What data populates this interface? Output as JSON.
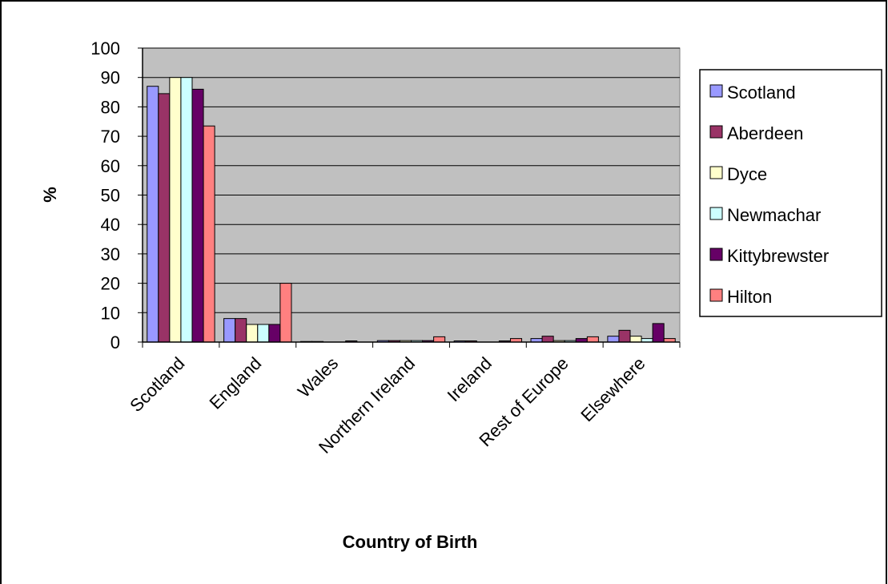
{
  "chart_data": {
    "type": "bar",
    "title": "",
    "xlabel": "Country of Birth",
    "ylabel": "%",
    "ylim": [
      0,
      100
    ],
    "yticks": [
      0,
      10,
      20,
      30,
      40,
      50,
      60,
      70,
      80,
      90,
      100
    ],
    "categories": [
      "Scotland",
      "England",
      "Wales",
      "Northern Ireland",
      "Ireland",
      "Rest of Europe",
      "Elsewhere"
    ],
    "series": [
      {
        "name": "Scotland",
        "color": "#9999FF",
        "values": [
          87,
          8,
          0.2,
          0.5,
          0.4,
          1.2,
          2.0
        ]
      },
      {
        "name": "Aberdeen",
        "color": "#993366",
        "values": [
          84.5,
          8,
          0.2,
          0.5,
          0.4,
          2.0,
          4.0
        ]
      },
      {
        "name": "Dyce",
        "color": "#FFFFCC",
        "values": [
          90,
          6,
          0.0,
          0.5,
          0.0,
          0.5,
          2.0
        ]
      },
      {
        "name": "Newmachar",
        "color": "#CCFFFF",
        "values": [
          90,
          6,
          0.0,
          0.5,
          0.0,
          0.5,
          1.2
        ]
      },
      {
        "name": "Kittybrewster",
        "color": "#660066",
        "values": [
          86,
          6,
          0.4,
          0.5,
          0.4,
          1.2,
          6.3
        ]
      },
      {
        "name": "Hilton",
        "color": "#FF8080",
        "values": [
          73.5,
          20,
          0.0,
          1.8,
          1.2,
          1.8,
          1.2
        ]
      }
    ],
    "legend_position": "right",
    "plot_background": "#C0C0C0",
    "grid": true
  }
}
